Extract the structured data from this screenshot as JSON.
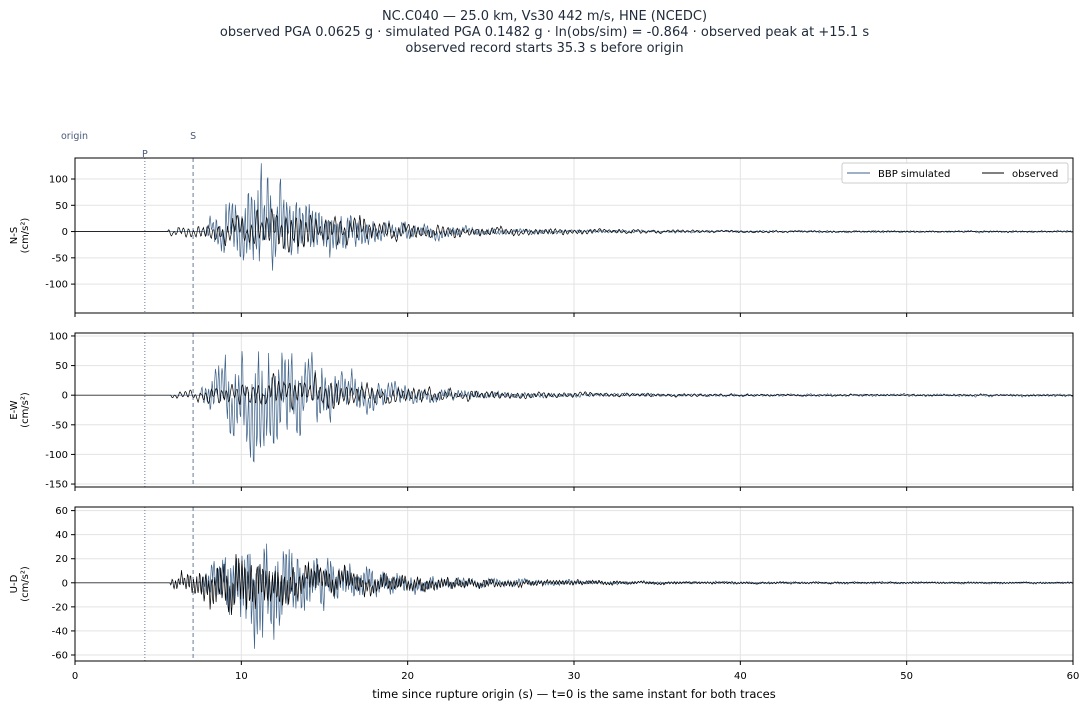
{
  "header": {
    "line1": "NC.C040  —  25.0 km, Vs30 442 m/s, HNE (NCEDC)",
    "line2": "observed PGA 0.0625 g   ·   simulated PGA 0.1482 g   ·   ln(obs/sim) = -0.864   ·   observed peak at +15.1 s",
    "line3": "observed record starts 35.3 s before origin"
  },
  "colors": {
    "simulated": "#3e6289",
    "observed": "#000000",
    "grid": "#e3e3e3",
    "marker": "#6b7a99"
  },
  "chart_data": {
    "type": "line",
    "xlabel": "time since rupture origin (s)   —   t=0 is the same instant for both traces",
    "xlim": [
      0,
      60
    ],
    "xticks": [
      0,
      10,
      20,
      30,
      40,
      50,
      60
    ],
    "markers": [
      {
        "label": "origin",
        "t": 0
      },
      {
        "label": "P",
        "t": 4.2
      },
      {
        "label": "S",
        "t": 7.1
      }
    ],
    "legend": {
      "placement": "top-right",
      "entries": [
        "BBP simulated",
        "observed"
      ]
    },
    "grid": true,
    "panels": [
      {
        "ylabel": "N-S\n(cm/s²)",
        "ylim": [
          -155,
          140
        ],
        "yticks": [
          -100,
          -50,
          0,
          50,
          100
        ],
        "series": [
          {
            "name": "BBP simulated",
            "amp": 128,
            "onset": 7.8,
            "peak": 11.2,
            "decay": 4.5,
            "freq": 5.2,
            "seed": 11
          },
          {
            "name": "observed",
            "amp": 48,
            "onset": 5.6,
            "peak": 12.5,
            "decay": 8.0,
            "freq": 3.4,
            "seed": 23
          }
        ]
      },
      {
        "ylabel": "E-W\n(cm/s²)",
        "ylim": [
          -155,
          105
        ],
        "yticks": [
          -150,
          -100,
          -50,
          0,
          50,
          100
        ],
        "series": [
          {
            "name": "BBP simulated",
            "amp": 140,
            "onset": 7.6,
            "peak": 11.0,
            "decay": 4.2,
            "freq": 5.0,
            "seed": 37
          },
          {
            "name": "observed",
            "amp": 35,
            "onset": 5.8,
            "peak": 13.0,
            "decay": 8.5,
            "freq": 3.2,
            "seed": 41
          }
        ]
      },
      {
        "ylabel": "U-D\n(cm/s²)",
        "ylim": [
          -65,
          63
        ],
        "yticks": [
          -60,
          -40,
          -20,
          0,
          20,
          40,
          60
        ],
        "series": [
          {
            "name": "BBP simulated",
            "amp": 58,
            "onset": 7.5,
            "peak": 11.0,
            "decay": 4.8,
            "freq": 6.0,
            "seed": 53
          },
          {
            "name": "observed",
            "amp": 30,
            "onset": 5.7,
            "peak": 9.5,
            "decay": 7.5,
            "freq": 5.5,
            "seed": 67
          }
        ]
      }
    ]
  }
}
